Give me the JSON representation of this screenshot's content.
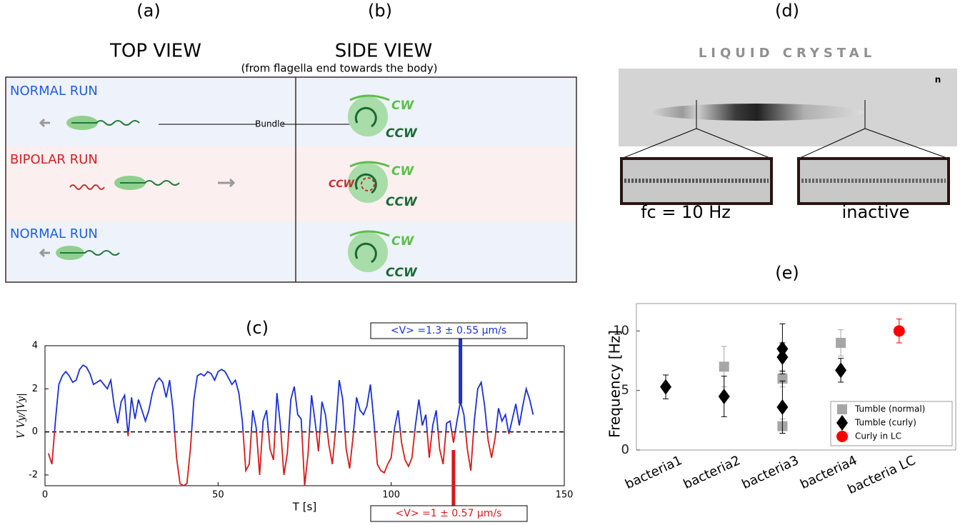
{
  "panels": {
    "a": {
      "label": "(a)",
      "heading": "TOP VIEW",
      "rows": [
        "NORMAL RUN",
        "BIPOLAR RUN",
        "NORMAL RUN"
      ],
      "bundle": "Bundle"
    },
    "b": {
      "label": "(b)",
      "heading": "SIDE VIEW",
      "subheading": "(from flagella end towards the body)",
      "cw": [
        "CW",
        "CW",
        "CW"
      ],
      "ccw": [
        "CCW",
        "CCW",
        "CCW"
      ],
      "ccw_red": "CCW"
    },
    "d": {
      "label": "(d)",
      "title": "LIQUID CRYSTAL",
      "director": "n",
      "insets": [
        "fc = 10 Hz",
        "inactive"
      ]
    }
  },
  "chart_data": [
    {
      "type": "line",
      "title": "(c)",
      "xlabel": "T [s]",
      "ylabel": "V Vy/|Vy|",
      "x": [
        1,
        2,
        3,
        4,
        5,
        6,
        7,
        8,
        9,
        10,
        11,
        12,
        13,
        14,
        15,
        16,
        17,
        18,
        19,
        20,
        21,
        22,
        23,
        24,
        25,
        26,
        27,
        28,
        29,
        30,
        31,
        32,
        33,
        34,
        35,
        36,
        37,
        38,
        39,
        40,
        41,
        42,
        43,
        44,
        45,
        46,
        47,
        48,
        49,
        50,
        51,
        52,
        53,
        54,
        55,
        56,
        57,
        58,
        59,
        60,
        61,
        62,
        63,
        64,
        65,
        66,
        67,
        68,
        69,
        70,
        71,
        72,
        73,
        74,
        75,
        76,
        77,
        78,
        79,
        80,
        81,
        82,
        83,
        84,
        85,
        86,
        87,
        88,
        89,
        90,
        91,
        92,
        93,
        94,
        95,
        96,
        97,
        98,
        99,
        100,
        101,
        102,
        103,
        104,
        105,
        106,
        107,
        108,
        109,
        110,
        111,
        112,
        113,
        114,
        115,
        116,
        117,
        118,
        119,
        120,
        121,
        122,
        123,
        124,
        125,
        126,
        127,
        128,
        129,
        130,
        131,
        132,
        133,
        134,
        135,
        136,
        137,
        138,
        139,
        140,
        141
      ],
      "values": [
        -1,
        -1.5,
        0.5,
        2.2,
        2.6,
        2.8,
        2.6,
        2.3,
        2.4,
        2.9,
        3.1,
        3,
        2.7,
        2.2,
        2.3,
        2.4,
        2.2,
        2,
        2.4,
        1.2,
        0.4,
        1.4,
        1.7,
        -0.2,
        1.6,
        0.6,
        1.5,
        1,
        0.5,
        1,
        1.8,
        2.3,
        2.5,
        2.3,
        1.6,
        2.4,
        1,
        -1.2,
        -2.4,
        -2.5,
        -2.4,
        -0.8,
        1.5,
        2.6,
        2.7,
        2.6,
        2.8,
        2.7,
        2.4,
        2.8,
        2.9,
        2.8,
        2.5,
        2.2,
        2.4,
        1.8,
        0.5,
        -1.8,
        -1.5,
        1,
        0.2,
        -2,
        0.5,
        1,
        -0.8,
        -1.3,
        1.8,
        0.3,
        -2,
        -1,
        1.5,
        2.1,
        0.8,
        0.6,
        -2.5,
        -1,
        1.7,
        0.5,
        -0.9,
        1.4,
        0.8,
        -0.6,
        -1.5,
        0.2,
        2.4,
        1.5,
        -0.8,
        -1.7,
        -0.2,
        1.6,
        1,
        0.8,
        1.2,
        2.2,
        0.5,
        -1.5,
        -1.8,
        -1.9,
        -1.5,
        -1.2,
        0.2,
        1,
        -0.5,
        -1.3,
        -1.6,
        -1.2,
        0.3,
        1.5,
        0.3,
        0.8,
        -1.2,
        0.3,
        1,
        -0.8,
        -1.5,
        0.4,
        0.5,
        -0.5,
        0.5,
        1.4,
        0.8,
        -0.8,
        -1.8,
        0.5,
        2,
        2.3,
        1.2,
        -0.4,
        -1.2,
        -0.3,
        1.1,
        0.5,
        0.8,
        -0.1,
        0.6,
        1.3,
        0.3,
        1.2,
        2,
        1.5,
        0.8
      ],
      "color_above": "#1a2fd6",
      "color_below": "#d61a1a",
      "xlim": [
        0,
        150
      ],
      "xticks": [
        0,
        50,
        100,
        150
      ],
      "ylim": [
        -2.5,
        4
      ],
      "yticks": [
        -2,
        0,
        2,
        4
      ],
      "zero_line": true,
      "annotations": [
        {
          "label": "<V> =1.3 ± 0.55 µm/s",
          "x": 120,
          "color": "#1a2fd6"
        },
        {
          "label": "<V> =1 ± 0.57 µm/s",
          "x": 118,
          "color": "#d61a1a"
        }
      ]
    },
    {
      "type": "scatter",
      "title": "(e)",
      "ylabel": "Frequency [Hz]",
      "categories": [
        "bacteria1",
        "bacteria2",
        "bacteria3",
        "bacteria4",
        "bacteria LC"
      ],
      "ylim": [
        0,
        12.3
      ],
      "yticks": [
        0,
        5,
        10
      ],
      "legend": "lower right",
      "series": [
        {
          "name": "Tumble (normal)",
          "color": "#a6a6a6",
          "marker": "square",
          "x": [
            "bacteria2",
            "bacteria3",
            "bacteria3",
            "bacteria4"
          ],
          "values": [
            7,
            6,
            2,
            9
          ],
          "errors": [
            1.7,
            0.7,
            0.6,
            1.1
          ]
        },
        {
          "name": "Tumble (curly)",
          "color": "#000000",
          "marker": "diamond",
          "x": [
            "bacteria1",
            "bacteria2",
            "bacteria3",
            "bacteria3",
            "bacteria3",
            "bacteria4"
          ],
          "values": [
            5.3,
            4.5,
            8.5,
            7.8,
            3.6,
            6.7
          ],
          "errors": [
            1,
            1.7,
            2.1,
            1.2,
            2.2,
            1
          ]
        },
        {
          "name": "Curly in LC",
          "color": "#ff0000",
          "marker": "circle",
          "x": [
            "bacteria LC"
          ],
          "values": [
            10
          ],
          "errors": [
            1
          ]
        }
      ]
    }
  ]
}
